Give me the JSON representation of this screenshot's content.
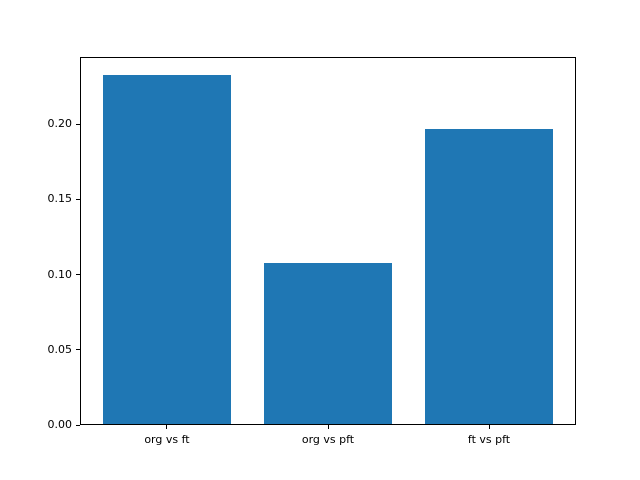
{
  "figure": {
    "background": "#ffffff"
  },
  "chart_data": {
    "type": "bar",
    "categories": [
      "org vs ft",
      "org vs pft",
      "ft vs pft"
    ],
    "values": [
      0.233,
      0.108,
      0.197
    ],
    "title": "",
    "xlabel": "",
    "ylabel": "",
    "ylim": [
      0,
      0.2447
    ],
    "yticks": [
      0.0,
      0.05,
      0.1,
      0.15,
      0.2
    ],
    "ytick_labels": [
      "0.00",
      "0.05",
      "0.10",
      "0.15",
      "0.20"
    ],
    "bar_color": "#1f77b4",
    "spine_color": "#000000",
    "text_color": "#000000",
    "bar_width_fraction": 0.8,
    "x_margin_fraction": 0.05,
    "grid": false,
    "legend": null
  }
}
